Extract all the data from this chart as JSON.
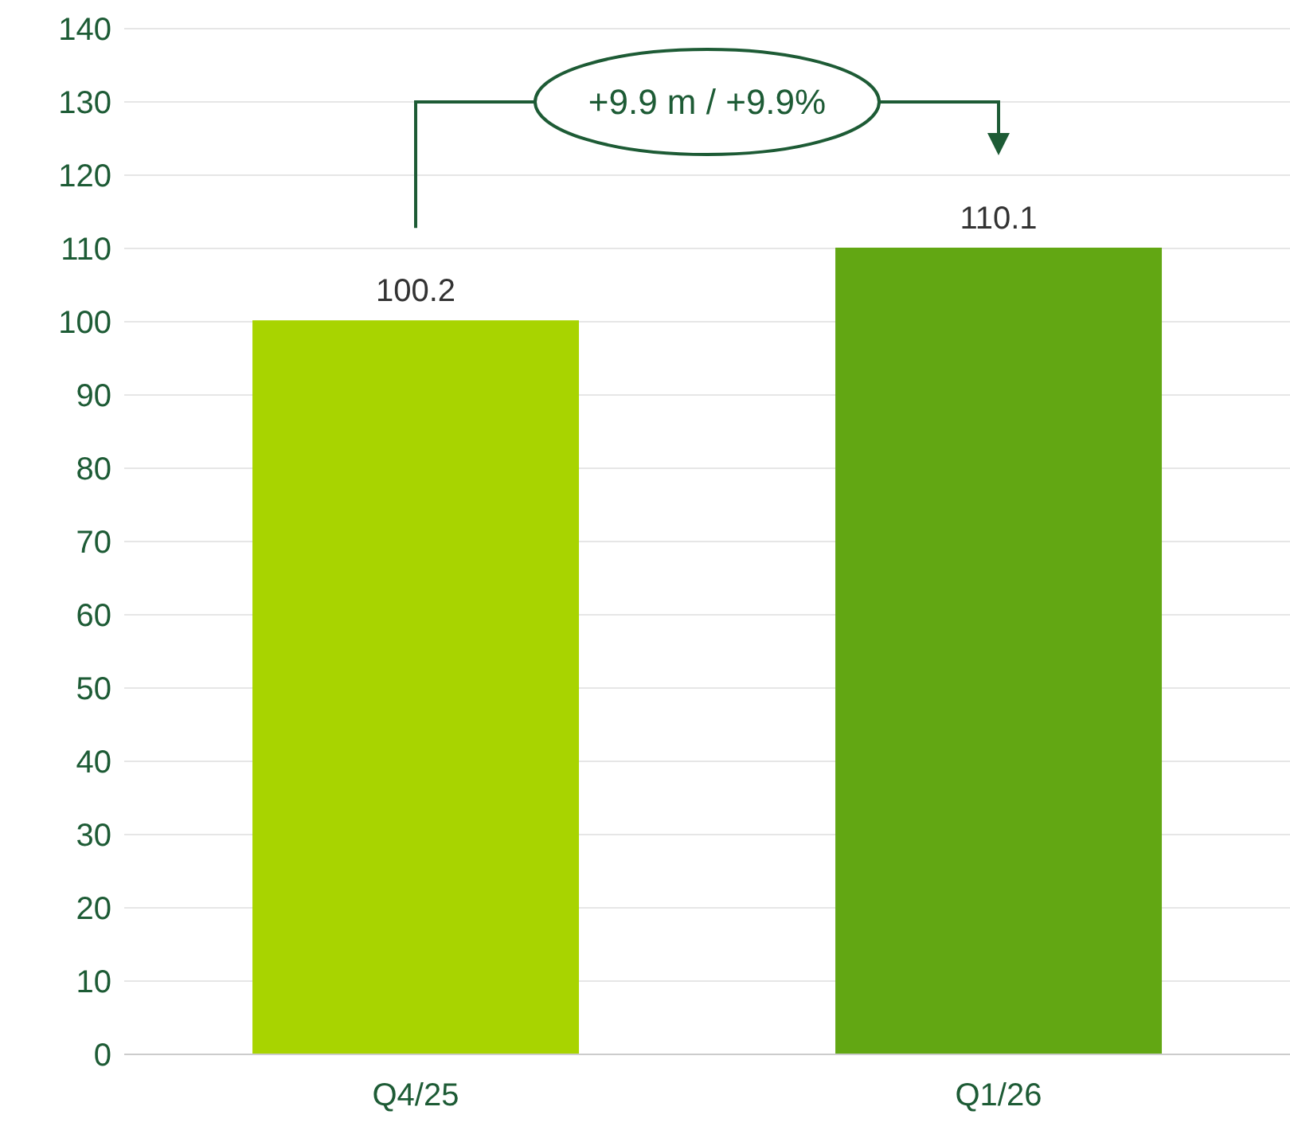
{
  "chart_data": {
    "type": "bar",
    "categories": [
      "Q4/25",
      "Q1/26"
    ],
    "values": [
      100.2,
      110.1
    ],
    "colors": [
      "#a8d400",
      "#62a713"
    ],
    "ylim": [
      0,
      140
    ],
    "yticks": [
      0,
      10,
      20,
      30,
      40,
      50,
      60,
      70,
      80,
      90,
      100,
      110,
      120,
      130,
      140
    ],
    "grid": "y",
    "data_labels": true,
    "annotations": [
      "+9.9 m / +9.9%"
    ]
  }
}
